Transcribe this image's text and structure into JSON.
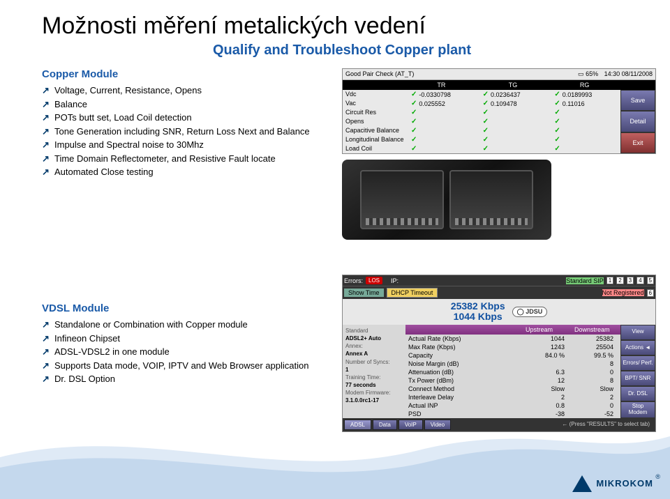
{
  "title": "Možnosti měření metalických vedení",
  "subtitle": "Qualify and Troubleshoot Copper plant",
  "subtitle_color": "#1a5aa8",
  "copper": {
    "label": "Copper Module",
    "label_color": "#1a5aa8",
    "bullets": [
      "Voltage, Current, Resistance, Opens",
      "Balance",
      "POTs butt set, Load Coil detection",
      "Tone Generation including SNR, Return Loss Next and Balance",
      "Impulse and Spectral noise to 30Mhz",
      "Time Domain Reflectometer, and Resistive Fault locate",
      "Automated Close testing"
    ]
  },
  "vdsl": {
    "label": "VDSL Module",
    "label_color": "#1a5aa8",
    "bullets": [
      "Standalone or Combination with Copper module",
      "Infineon Chipset",
      "ADSL-VDSL2 in one module",
      "Supports Data mode, VOIP, IPTV and Web Browser application",
      "Dr. DSL Option"
    ]
  },
  "pair_check": {
    "title": "Good Pair Check (AT_T)",
    "battery": "65%",
    "datetime": "14:30 08/11/2008",
    "cols": [
      "",
      "TR",
      "TG",
      "RG",
      ""
    ],
    "rows": [
      {
        "label": "Vdc",
        "vals": [
          "-0.0330798",
          "0.0236437",
          "0.0189993"
        ]
      },
      {
        "label": "Vac",
        "vals": [
          "0.025552",
          "0.109478",
          "0.11016"
        ]
      },
      {
        "label": "Circuit Res",
        "vals": [
          "",
          "",
          ""
        ]
      },
      {
        "label": "Opens",
        "vals": [
          "",
          "",
          ""
        ]
      },
      {
        "label": "Capacitive Balance",
        "vals": [
          "",
          "",
          ""
        ]
      },
      {
        "label": "Longitudinal Balance",
        "vals": [
          "",
          "",
          ""
        ]
      },
      {
        "label": "Load Coil",
        "vals": [
          "",
          "",
          ""
        ]
      }
    ],
    "side": [
      "Save",
      "Detail",
      "Exit"
    ]
  },
  "vdsl_screen": {
    "errors_label": "Errors:",
    "errors": "LOS",
    "ip_label": "IP:",
    "dhcp": "DHCP Timeout",
    "showtime": "Show Time",
    "sip1": "Standard SIP",
    "sip2": "Not Registered",
    "nums": [
      "1",
      "2",
      "3",
      "4",
      "5",
      "6"
    ],
    "rate_down": "25382 Kbps",
    "rate_up": "1044 Kbps",
    "brand": "JDSU",
    "left": [
      [
        "Standard",
        ""
      ],
      [
        "",
        "ADSL2+ Auto"
      ],
      [
        "Annex:",
        ""
      ],
      [
        "",
        "Annex A"
      ],
      [
        "Number of Syncs:",
        ""
      ],
      [
        "",
        "1"
      ],
      [
        "Training Time:",
        ""
      ],
      [
        "",
        "77 seconds"
      ],
      [
        "Modem Firmware:",
        ""
      ],
      [
        "",
        "3.1.0.0rc1-17"
      ]
    ],
    "hdr": [
      "",
      "Upstream",
      "Downstream"
    ],
    "trs": [
      [
        "Actual Rate (Kbps)",
        "1044",
        "25382"
      ],
      [
        "Max Rate (Kbps)",
        "1243",
        "25504"
      ],
      [
        "Capacity",
        "84.0 %",
        "99.5 %"
      ],
      [
        "Noise Margin (dB)",
        "",
        "8"
      ],
      [
        "Attenuation (dB)",
        "6.3",
        "0"
      ],
      [
        "Tx Power (dBm)",
        "12",
        "8"
      ],
      [
        "Connect Method",
        "Slow",
        "Slow"
      ],
      [
        "Interleave Delay",
        "2",
        "2"
      ],
      [
        "Actual INP",
        "0.8",
        "0"
      ],
      [
        "PSD",
        "-38",
        "-52"
      ]
    ],
    "side": [
      "View",
      "Actions ◄",
      "Errors/ Perf.",
      "BPT/ SNR",
      "Dr. DSL",
      "Stop Modem"
    ],
    "tabs": [
      "ADSL",
      "Data",
      "VoIP",
      "Video"
    ],
    "hint": "← (Press \"RESULTS\" to select tab)"
  },
  "logo": "MIKROKOM"
}
